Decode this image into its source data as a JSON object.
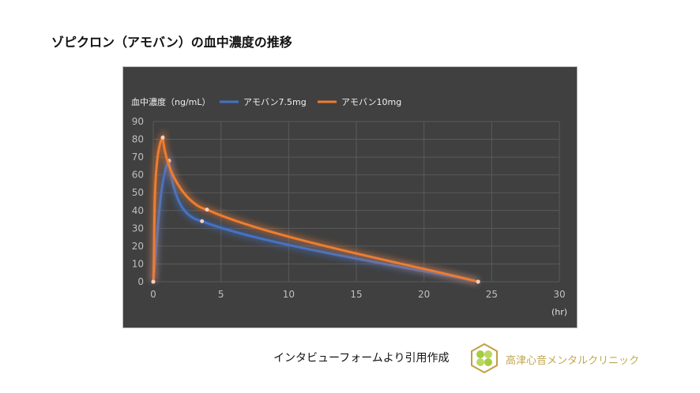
{
  "title": "ゾピクロン（アモバン）の血中濃度の推移",
  "source_note": "インタビューフォームより引用作成",
  "clinic_name": "高津心音メンタルクリニック",
  "chart_data": {
    "type": "line",
    "ylabel": "血中濃度（ng/mL）",
    "xunit": "(hr)",
    "xlim": [
      0,
      30
    ],
    "ylim": [
      0,
      90
    ],
    "xticks": [
      0,
      5,
      10,
      15,
      20,
      25,
      30
    ],
    "yticks": [
      0,
      10,
      20,
      30,
      40,
      50,
      60,
      70,
      80,
      90
    ],
    "grid": true,
    "legend": "top",
    "background": "#404040",
    "series": [
      {
        "name": "アモバン7.5mg",
        "color": "#4472C4",
        "points": [
          [
            0,
            0
          ],
          [
            1.17,
            68
          ],
          [
            3.6,
            34
          ],
          [
            24,
            0
          ]
        ]
      },
      {
        "name": "アモバン10mg",
        "color": "#ED7D31",
        "points": [
          [
            0,
            0
          ],
          [
            0.7,
            81
          ],
          [
            3.97,
            40.5
          ],
          [
            24,
            0
          ]
        ]
      }
    ]
  }
}
